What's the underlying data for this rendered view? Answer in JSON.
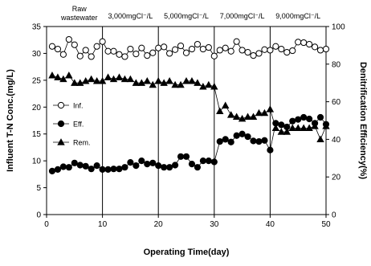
{
  "chart_data": {
    "type": "scatter",
    "xlabel": "Operating Time(day)",
    "ylabel_left": "Influent T-N Conc.(mg/L)",
    "ylabel_right": "Denitrification Efficiency(%)",
    "xlim": [
      0,
      50
    ],
    "ylim_left": [
      0,
      35
    ],
    "ylim_right": [
      0,
      100
    ],
    "x_ticks": [
      "0",
      "10",
      "20",
      "30",
      "40",
      "50"
    ],
    "y_left_ticks": [
      "0",
      "5",
      "10",
      "15",
      "20",
      "25",
      "30",
      "35"
    ],
    "y_right_ticks": [
      "0",
      "20",
      "40",
      "60",
      "80",
      "100"
    ],
    "grid": false,
    "legend_position": "left",
    "phase_dividers": [
      10,
      20,
      30,
      40
    ],
    "phases": [
      {
        "label_line1": "Raw",
        "label_line2": "wastewater"
      },
      {
        "label": "3,000mgCl⁻/L"
      },
      {
        "label": "5,000mgCl⁻/L"
      },
      {
        "label": "7,000mgCl⁻/L"
      },
      {
        "label": "9,000mgCl⁻/L"
      }
    ],
    "series": [
      {
        "name": "Inf.",
        "axis": "left",
        "marker": "open-circle",
        "x": [
          1,
          2,
          3,
          4,
          5,
          6,
          7,
          8,
          9,
          10,
          11,
          12,
          13,
          14,
          15,
          16,
          17,
          18,
          19,
          20,
          21,
          22,
          23,
          24,
          25,
          26,
          27,
          28,
          29,
          30,
          31,
          32,
          33,
          34,
          35,
          36,
          37,
          38,
          39,
          40,
          41,
          42,
          43,
          44,
          45,
          46,
          47,
          48,
          49,
          50
        ],
        "values": [
          31.3,
          30.8,
          29.8,
          32.6,
          31.6,
          29.5,
          30.6,
          29.4,
          31.3,
          32.2,
          30.4,
          30.4,
          29.8,
          29.4,
          30.8,
          29.9,
          31.0,
          29.6,
          30.1,
          31.0,
          31.2,
          30.0,
          30.7,
          31.4,
          30.1,
          30.8,
          31.7,
          30.8,
          31.1,
          29.5,
          30.6,
          31.0,
          30.4,
          32.2,
          30.6,
          30.2,
          29.6,
          30.0,
          30.7,
          30.6,
          31.3,
          30.8,
          30.2,
          30.5,
          32.1,
          32.0,
          31.7,
          31.2,
          30.6,
          30.8
        ]
      },
      {
        "name": "Eff.",
        "axis": "left",
        "marker": "filled-circle",
        "x": [
          1,
          2,
          3,
          4,
          5,
          6,
          7,
          8,
          9,
          10,
          11,
          12,
          13,
          14,
          15,
          16,
          17,
          18,
          19,
          20,
          21,
          22,
          23,
          24,
          25,
          26,
          27,
          28,
          29,
          30,
          31,
          32,
          33,
          34,
          35,
          36,
          37,
          38,
          39,
          40,
          41,
          42,
          43,
          44,
          45,
          46,
          47,
          48,
          49,
          50
        ],
        "values": [
          8.1,
          8.4,
          8.9,
          8.8,
          9.6,
          9.2,
          9.0,
          8.5,
          9.1,
          8.4,
          8.4,
          8.5,
          8.5,
          8.8,
          9.7,
          9.1,
          10.0,
          9.4,
          9.6,
          9.1,
          8.8,
          8.8,
          9.2,
          10.8,
          10.8,
          9.4,
          8.8,
          10.0,
          10.0,
          9.8,
          13.6,
          14.0,
          13.5,
          14.7,
          15.0,
          14.5,
          13.7,
          13.6,
          13.8,
          12.0,
          17.0,
          16.7,
          16.3,
          17.4,
          17.7,
          18.1,
          17.8,
          17.0,
          18.1,
          16.8
        ]
      },
      {
        "name": "Rem.",
        "axis": "right",
        "marker": "filled-triangle",
        "x": [
          1,
          2,
          3,
          4,
          5,
          6,
          7,
          8,
          9,
          10,
          11,
          12,
          13,
          14,
          15,
          16,
          17,
          18,
          19,
          20,
          21,
          22,
          23,
          24,
          25,
          26,
          27,
          28,
          29,
          30,
          31,
          32,
          33,
          34,
          35,
          36,
          37,
          38,
          39,
          40,
          41,
          42,
          43,
          44,
          45,
          46,
          47,
          48,
          49,
          50
        ],
        "values": [
          74,
          73,
          72,
          74,
          70,
          70,
          71,
          72,
          71,
          71,
          73,
          72,
          73,
          72,
          72,
          70,
          70,
          71,
          69,
          71,
          70,
          71,
          69,
          69,
          71,
          71,
          70,
          68,
          69,
          68,
          55,
          58,
          53,
          52,
          51,
          52,
          52,
          54,
          54,
          56,
          46,
          44,
          44,
          46,
          46,
          46,
          46,
          47,
          40,
          47
        ]
      }
    ]
  }
}
